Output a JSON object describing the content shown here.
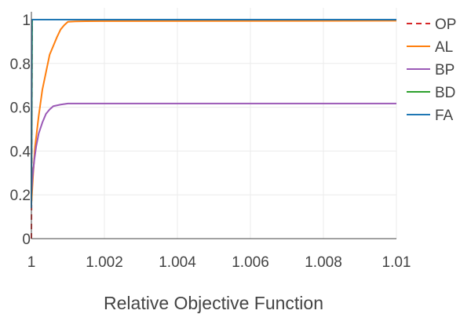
{
  "chart_data": {
    "type": "line",
    "title": "",
    "xlabel": "Relative Objective Function",
    "ylabel": "",
    "xlim": [
      1,
      1.01
    ],
    "ylim": [
      0,
      1
    ],
    "x_ticks": [
      {
        "value": 1,
        "label": "1"
      },
      {
        "value": 1.002,
        "label": "1.002"
      },
      {
        "value": 1.004,
        "label": "1.004"
      },
      {
        "value": 1.006,
        "label": "1.006"
      },
      {
        "value": 1.008,
        "label": "1.008"
      },
      {
        "value": 1.01,
        "label": "1.01"
      }
    ],
    "y_ticks": [
      {
        "value": 0,
        "label": "0"
      },
      {
        "value": 0.2,
        "label": "0.2"
      },
      {
        "value": 0.4,
        "label": "0.4"
      },
      {
        "value": 0.6,
        "label": "0.6"
      },
      {
        "value": 0.8,
        "label": "0.8"
      },
      {
        "value": 1,
        "label": "1"
      }
    ],
    "grid": true,
    "legend_position": "right",
    "series": [
      {
        "name": "OP",
        "color": "#d62728",
        "dash": "dashed",
        "x": [
          1,
          1.00002,
          1.01
        ],
        "y": [
          0,
          1,
          1
        ]
      },
      {
        "name": "AL",
        "color": "#ff7f0e",
        "dash": "solid",
        "x": [
          1,
          1.00005,
          1.0001,
          1.0002,
          1.0003,
          1.0004,
          1.0005,
          1.0006,
          1.0007,
          1.0008,
          1.0009,
          1.001,
          1.0012,
          1.0015,
          1.01
        ],
        "y": [
          0.16,
          0.3,
          0.42,
          0.56,
          0.68,
          0.76,
          0.84,
          0.88,
          0.92,
          0.955,
          0.975,
          0.99,
          0.992,
          0.993,
          0.995
        ]
      },
      {
        "name": "BP",
        "color": "#9b59b6",
        "dash": "solid",
        "x": [
          1,
          1.00003,
          1.00008,
          1.00013,
          1.0002,
          1.0003,
          1.0004,
          1.0005,
          1.0006,
          1.0008,
          1.001,
          1.0015,
          1.01
        ],
        "y": [
          0.2,
          0.28,
          0.36,
          0.42,
          0.48,
          0.53,
          0.57,
          0.59,
          0.605,
          0.612,
          0.617,
          0.617,
          0.617
        ]
      },
      {
        "name": "BD",
        "color": "#2ca02c",
        "dash": "solid",
        "x": [
          1,
          1.00002,
          1.01
        ],
        "y": [
          0.14,
          1,
          1
        ]
      },
      {
        "name": "FA",
        "color": "#1f77b4",
        "dash": "solid",
        "x": [
          1,
          1.00001,
          1.01
        ],
        "y": [
          0.14,
          1,
          1
        ]
      }
    ]
  }
}
